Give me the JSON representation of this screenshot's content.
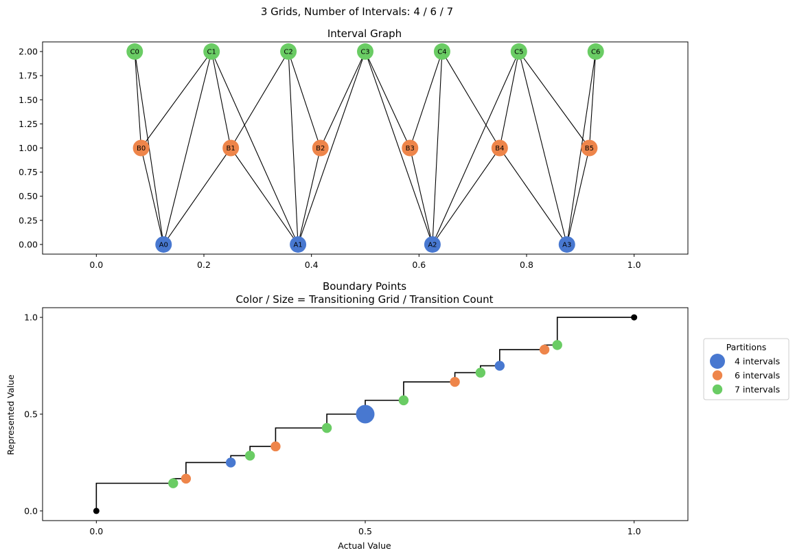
{
  "figure": {
    "suptitle": "3 Grids, Number of Intervals: 4 / 6 / 7"
  },
  "palette": {
    "grid_4": "#4878d0",
    "grid_6": "#ee854a",
    "grid_7": "#6acc64"
  },
  "chart_data": [
    {
      "type": "scatter",
      "title": "Interval Graph",
      "xlabel": "",
      "ylabel": "",
      "xlim": [
        -0.1,
        1.1
      ],
      "ylim": [
        -0.1,
        2.1
      ],
      "xticks": [
        0.0,
        0.2,
        0.4,
        0.6,
        0.8,
        1.0
      ],
      "xtick_labels": [
        "0.0",
        "0.2",
        "0.4",
        "0.6",
        "0.8",
        "1.0"
      ],
      "yticks": [
        0.0,
        0.25,
        0.5,
        0.75,
        1.0,
        1.25,
        1.5,
        1.75,
        2.0
      ],
      "ytick_labels": [
        "0.00",
        "0.25",
        "0.50",
        "0.75",
        "1.00",
        "1.25",
        "1.50",
        "1.75",
        "2.00"
      ],
      "grid": false,
      "nodes": [
        {
          "id": "A0",
          "x": 0.125,
          "y": 0,
          "grid": 4
        },
        {
          "id": "A1",
          "x": 0.375,
          "y": 0,
          "grid": 4
        },
        {
          "id": "A2",
          "x": 0.625,
          "y": 0,
          "grid": 4
        },
        {
          "id": "A3",
          "x": 0.875,
          "y": 0,
          "grid": 4
        },
        {
          "id": "B0",
          "x": 0.0833,
          "y": 1,
          "grid": 6
        },
        {
          "id": "B1",
          "x": 0.25,
          "y": 1,
          "grid": 6
        },
        {
          "id": "B2",
          "x": 0.4167,
          "y": 1,
          "grid": 6
        },
        {
          "id": "B3",
          "x": 0.5833,
          "y": 1,
          "grid": 6
        },
        {
          "id": "B4",
          "x": 0.75,
          "y": 1,
          "grid": 6
        },
        {
          "id": "B5",
          "x": 0.9167,
          "y": 1,
          "grid": 6
        },
        {
          "id": "C0",
          "x": 0.0714,
          "y": 2,
          "grid": 7
        },
        {
          "id": "C1",
          "x": 0.2143,
          "y": 2,
          "grid": 7
        },
        {
          "id": "C2",
          "x": 0.3571,
          "y": 2,
          "grid": 7
        },
        {
          "id": "C3",
          "x": 0.5,
          "y": 2,
          "grid": 7
        },
        {
          "id": "C4",
          "x": 0.6429,
          "y": 2,
          "grid": 7
        },
        {
          "id": "C5",
          "x": 0.7857,
          "y": 2,
          "grid": 7
        },
        {
          "id": "C6",
          "x": 0.9286,
          "y": 2,
          "grid": 7
        }
      ],
      "edges": [
        [
          "A0",
          "B0"
        ],
        [
          "A0",
          "B1"
        ],
        [
          "A0",
          "C0"
        ],
        [
          "A0",
          "C1"
        ],
        [
          "A1",
          "B1"
        ],
        [
          "A1",
          "B2"
        ],
        [
          "A1",
          "C1"
        ],
        [
          "A1",
          "C2"
        ],
        [
          "A1",
          "C3"
        ],
        [
          "A2",
          "B3"
        ],
        [
          "A2",
          "B4"
        ],
        [
          "A2",
          "C3"
        ],
        [
          "A2",
          "C4"
        ],
        [
          "A2",
          "C5"
        ],
        [
          "A3",
          "B4"
        ],
        [
          "A3",
          "B5"
        ],
        [
          "A3",
          "C5"
        ],
        [
          "A3",
          "C6"
        ],
        [
          "B0",
          "C0"
        ],
        [
          "B0",
          "C1"
        ],
        [
          "B1",
          "C1"
        ],
        [
          "B1",
          "C2"
        ],
        [
          "B2",
          "C2"
        ],
        [
          "B2",
          "C3"
        ],
        [
          "B3",
          "C3"
        ],
        [
          "B3",
          "C4"
        ],
        [
          "B4",
          "C4"
        ],
        [
          "B4",
          "C5"
        ],
        [
          "B5",
          "C5"
        ],
        [
          "B5",
          "C6"
        ]
      ]
    },
    {
      "type": "scatter",
      "title": "Boundary Points",
      "subtitle": "Color / Size = Transitioning Grid / Transition Count",
      "xlabel": "Actual Value",
      "ylabel": "Represented Value",
      "xlim": [
        -0.1,
        1.1
      ],
      "ylim": [
        -0.05,
        1.05
      ],
      "xticks": [
        0.0,
        0.5,
        1.0
      ],
      "xtick_labels": [
        "0.0",
        "0.5",
        "1.0"
      ],
      "yticks": [
        0.0,
        0.5,
        1.0
      ],
      "ytick_labels": [
        "0.0",
        "0.5",
        "1.0"
      ],
      "grid": false,
      "legend": {
        "title": "Partitions",
        "placement": "outside-right",
        "entries": [
          {
            "label": "4 intervals",
            "grid": 4
          },
          {
            "label": "6 intervals",
            "grid": 6
          },
          {
            "label": "7 intervals",
            "grid": 7
          }
        ]
      },
      "step_x": [
        0,
        0.1429,
        0.1667,
        0.25,
        0.2857,
        0.3333,
        0.4286,
        0.5,
        0.5714,
        0.6667,
        0.7143,
        0.75,
        0.8333,
        0.8571,
        1
      ],
      "step_y": [
        0,
        0.1429,
        0.1667,
        0.25,
        0.2857,
        0.3333,
        0.4286,
        0.5,
        0.5714,
        0.6667,
        0.7143,
        0.75,
        0.8333,
        0.8571,
        1
      ],
      "endpoints": [
        {
          "x": 0,
          "y": 0
        },
        {
          "x": 1,
          "y": 1
        }
      ],
      "points": [
        {
          "x": 0.1429,
          "y": 0.1429,
          "grid": 7,
          "count": 1
        },
        {
          "x": 0.1667,
          "y": 0.1667,
          "grid": 6,
          "count": 1
        },
        {
          "x": 0.25,
          "y": 0.25,
          "grid": 4,
          "count": 1
        },
        {
          "x": 0.2857,
          "y": 0.2857,
          "grid": 7,
          "count": 1
        },
        {
          "x": 0.3333,
          "y": 0.3333,
          "grid": 6,
          "count": 1
        },
        {
          "x": 0.4286,
          "y": 0.4286,
          "grid": 7,
          "count": 1
        },
        {
          "x": 0.5,
          "y": 0.5,
          "grid": 4,
          "count": 3
        },
        {
          "x": 0.5714,
          "y": 0.5714,
          "grid": 7,
          "count": 1
        },
        {
          "x": 0.6667,
          "y": 0.6667,
          "grid": 6,
          "count": 1
        },
        {
          "x": 0.7143,
          "y": 0.7143,
          "grid": 7,
          "count": 1
        },
        {
          "x": 0.75,
          "y": 0.75,
          "grid": 4,
          "count": 1
        },
        {
          "x": 0.8333,
          "y": 0.8333,
          "grid": 6,
          "count": 1
        },
        {
          "x": 0.8571,
          "y": 0.8571,
          "grid": 7,
          "count": 1
        }
      ]
    }
  ]
}
